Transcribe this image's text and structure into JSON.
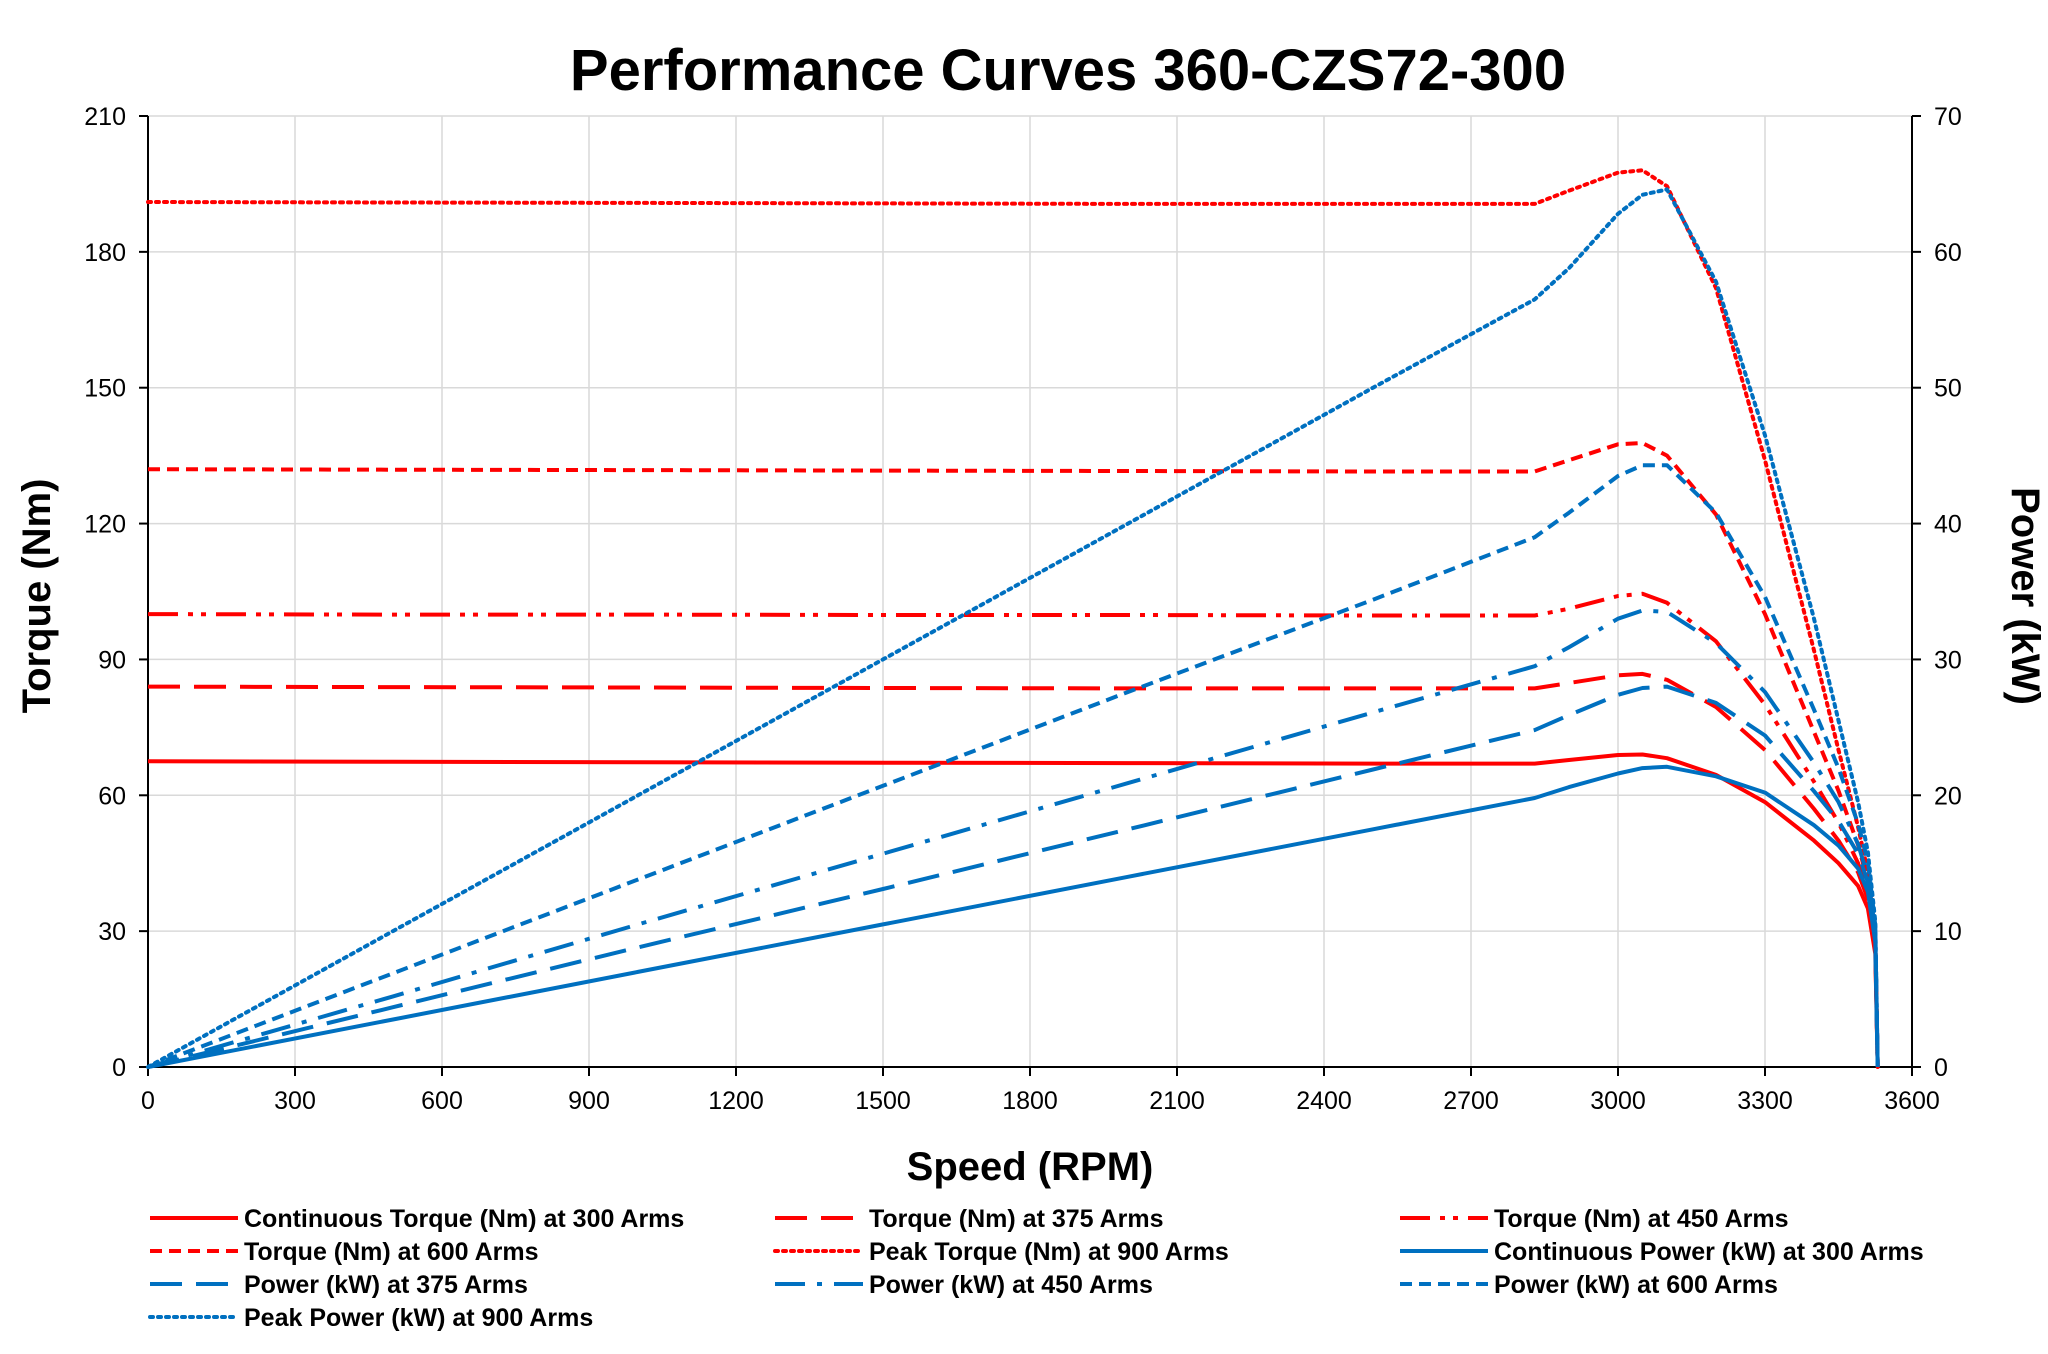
{
  "chart_data": {
    "type": "line",
    "title": "Performance Curves 360-CZS72-300",
    "xlabel": "Speed (RPM)",
    "ylabel": "Torque (Nm)",
    "y2label": "Power (kW)",
    "xlim": [
      0,
      3600
    ],
    "ylim": [
      0,
      210
    ],
    "y2lim": [
      0,
      70
    ],
    "xticks": [
      0,
      300,
      600,
      900,
      1200,
      1500,
      1800,
      2100,
      2400,
      2700,
      3000,
      3300,
      3600
    ],
    "yticks": [
      0,
      30,
      60,
      90,
      120,
      150,
      180,
      210
    ],
    "y2ticks": [
      0,
      10,
      20,
      30,
      40,
      50,
      60,
      70
    ],
    "grid": true,
    "legend_position": "bottom",
    "series": [
      {
        "name": "Continuous Torque (Nm) at 300 Arms",
        "axis": "left",
        "color": "#ff0000",
        "dash": "solid",
        "x": [
          0,
          500,
          1000,
          1500,
          2000,
          2500,
          2830,
          2900,
          3000,
          3050,
          3100,
          3200,
          3300,
          3400,
          3450,
          3490,
          3510,
          3525,
          3530
        ],
        "y": [
          67.5,
          67.4,
          67.3,
          67.2,
          67.1,
          67.0,
          67.0,
          67.8,
          68.9,
          69.0,
          68.2,
          64.5,
          58.5,
          50.0,
          45.0,
          40.0,
          35.0,
          25.0,
          0
        ]
      },
      {
        "name": "Torque (Nm) at 375 Arms",
        "axis": "left",
        "color": "#ff0000",
        "dash": "long",
        "x": [
          0,
          500,
          1000,
          1500,
          2000,
          2500,
          2830,
          2900,
          3000,
          3050,
          3100,
          3200,
          3300,
          3400,
          3450,
          3490,
          3510,
          3525,
          3530
        ],
        "y": [
          84.0,
          83.9,
          83.8,
          83.7,
          83.6,
          83.6,
          83.6,
          84.8,
          86.5,
          86.8,
          85.5,
          79.5,
          70.0,
          57.0,
          50.0,
          43.0,
          37.0,
          26.0,
          0
        ]
      },
      {
        "name": "Torque (Nm) at 450 Arms",
        "axis": "left",
        "color": "#ff0000",
        "dash": "dashdotdot",
        "x": [
          0,
          500,
          1000,
          1500,
          2000,
          2500,
          2830,
          2900,
          3000,
          3050,
          3100,
          3200,
          3300,
          3400,
          3450,
          3490,
          3510,
          3525,
          3530
        ],
        "y": [
          100.0,
          99.9,
          99.9,
          99.8,
          99.8,
          99.7,
          99.7,
          101.2,
          104.0,
          104.5,
          102.5,
          94.0,
          80.0,
          63.0,
          54.0,
          45.0,
          38.0,
          27.0,
          0
        ]
      },
      {
        "name": "Torque (Nm) at 600 Arms",
        "axis": "left",
        "color": "#ff0000",
        "dash": "short",
        "x": [
          0,
          500,
          1000,
          1500,
          2000,
          2500,
          2830,
          2900,
          3000,
          3050,
          3100,
          3200,
          3300,
          3400,
          3450,
          3490,
          3510,
          3525,
          3530
        ],
        "y": [
          132.0,
          131.9,
          131.8,
          131.7,
          131.6,
          131.5,
          131.5,
          134.0,
          137.5,
          137.8,
          135.0,
          122.0,
          100.0,
          74.0,
          61.0,
          49.0,
          41.0,
          28.0,
          0
        ]
      },
      {
        "name": "Peak Torque (Nm) at 900  Arms",
        "axis": "left",
        "color": "#ff0000",
        "dash": "dot",
        "x": [
          0,
          500,
          1000,
          1500,
          2000,
          2500,
          2830,
          2900,
          3000,
          3050,
          3100,
          3200,
          3300,
          3400,
          3450,
          3490,
          3510,
          3525,
          3530
        ],
        "y": [
          191.0,
          190.9,
          190.8,
          190.7,
          190.6,
          190.6,
          190.6,
          193.5,
          197.5,
          198.0,
          194.5,
          172.0,
          134.0,
          92.0,
          70.0,
          53.0,
          43.0,
          29.0,
          0
        ]
      },
      {
        "name": "Continuous Power (kW) at 300 Arms",
        "axis": "right",
        "color": "#0070c0",
        "dash": "solid",
        "x": [
          0,
          500,
          1000,
          1500,
          2000,
          2500,
          2830,
          2900,
          3000,
          3050,
          3100,
          3200,
          3300,
          3400,
          3450,
          3490,
          3510,
          3525,
          3530
        ],
        "y": [
          0,
          3.5,
          7.0,
          10.5,
          14.0,
          17.5,
          19.8,
          20.6,
          21.6,
          22.0,
          22.1,
          21.4,
          20.2,
          17.8,
          16.3,
          14.6,
          12.9,
          9.2,
          0
        ]
      },
      {
        "name": "Power (kW) at 375 Arms",
        "axis": "right",
        "color": "#0070c0",
        "dash": "long",
        "x": [
          0,
          500,
          1000,
          1500,
          2000,
          2500,
          2830,
          2900,
          3000,
          3050,
          3100,
          3200,
          3300,
          3400,
          3450,
          3490,
          3510,
          3525,
          3530
        ],
        "y": [
          0,
          4.4,
          8.8,
          13.1,
          17.5,
          21.9,
          24.8,
          25.9,
          27.4,
          27.9,
          28.0,
          26.8,
          24.4,
          20.3,
          18.1,
          15.7,
          13.6,
          9.6,
          0
        ]
      },
      {
        "name": "Power (kW) at 450 Arms",
        "axis": "right",
        "color": "#0070c0",
        "dash": "dashdot",
        "x": [
          0,
          500,
          1000,
          1500,
          2000,
          2500,
          2830,
          2900,
          3000,
          3050,
          3100,
          3200,
          3300,
          3400,
          3450,
          3490,
          3510,
          3525,
          3530
        ],
        "y": [
          0,
          5.2,
          10.5,
          15.7,
          20.9,
          26.1,
          29.5,
          30.9,
          33.0,
          33.6,
          33.5,
          31.2,
          27.6,
          22.4,
          19.5,
          16.4,
          14.0,
          10.0,
          0
        ]
      },
      {
        "name": "Power (kW) at 600 Arms",
        "axis": "right",
        "color": "#0070c0",
        "dash": "short",
        "x": [
          0,
          500,
          1000,
          1500,
          2000,
          2500,
          2830,
          2900,
          3000,
          3050,
          3100,
          3200,
          3300,
          3400,
          3450,
          3490,
          3510,
          3525,
          3530
        ],
        "y": [
          0,
          6.9,
          13.8,
          20.7,
          27.6,
          34.4,
          39.0,
          40.8,
          43.5,
          44.3,
          44.3,
          40.8,
          34.6,
          26.3,
          22.0,
          17.9,
          15.1,
          10.4,
          0
        ]
      },
      {
        "name": "Peak Power (kW) at 900 Arms",
        "axis": "right",
        "color": "#0070c0",
        "dash": "dot",
        "x": [
          0,
          500,
          1000,
          1500,
          2000,
          2500,
          2830,
          2900,
          3000,
          3050,
          3100,
          3200,
          3300,
          3400,
          3450,
          3490,
          3510,
          3525,
          3530
        ],
        "y": [
          0,
          10.0,
          20.0,
          30.0,
          40.0,
          50.0,
          56.5,
          58.8,
          62.8,
          64.2,
          64.6,
          57.8,
          46.5,
          33.0,
          25.5,
          19.5,
          15.8,
          10.7,
          0
        ]
      }
    ]
  }
}
